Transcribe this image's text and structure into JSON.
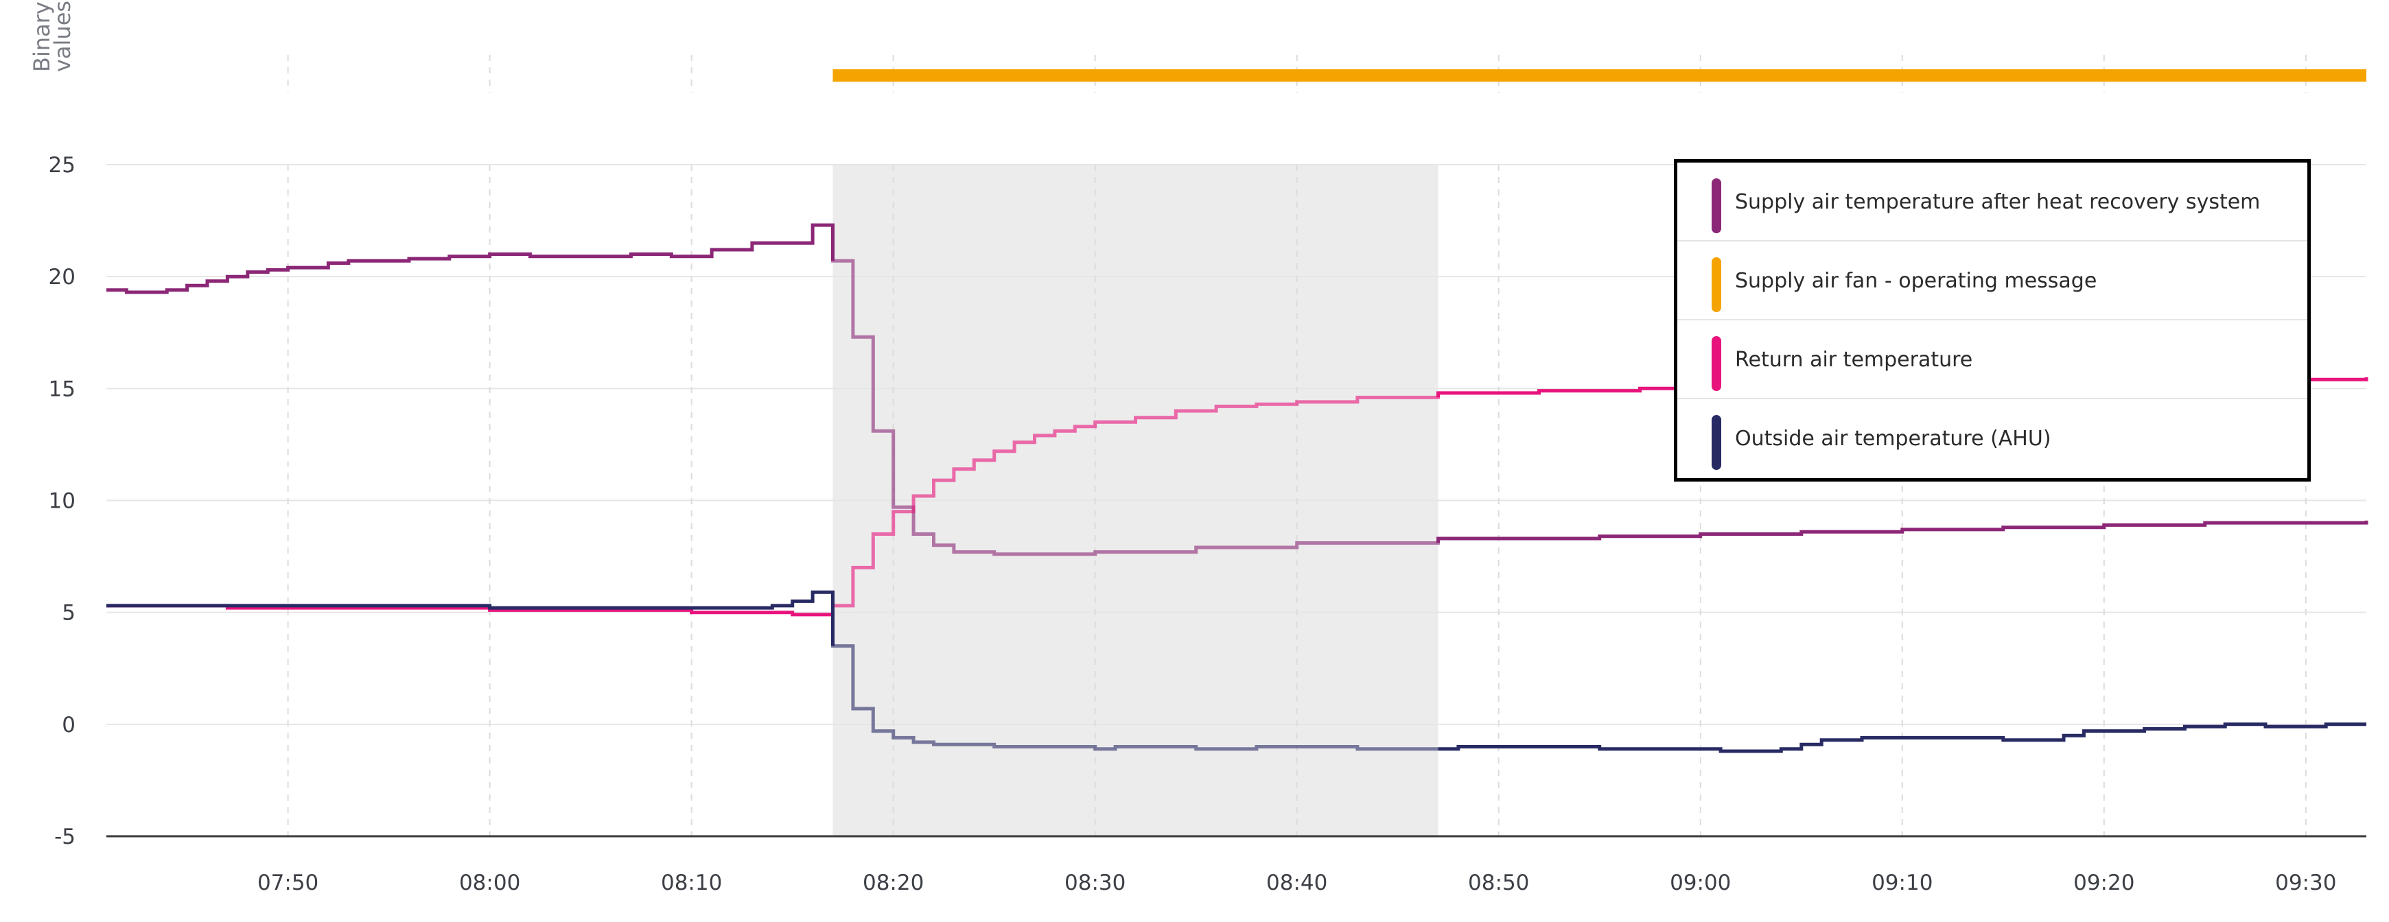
{
  "binary_axis_label": [
    "Binary",
    "values"
  ],
  "chart_data": {
    "type": "line",
    "step": true,
    "x_unit": "time",
    "x_ticks": [
      "07:50",
      "08:00",
      "08:10",
      "08:20",
      "08:30",
      "08:40",
      "08:50",
      "09:00",
      "09:10",
      "09:20",
      "09:30"
    ],
    "y_ticks": [
      25,
      20,
      15,
      10,
      5,
      0,
      -5
    ],
    "ylim": [
      -5,
      25
    ],
    "xlim": [
      "07:41",
      "09:33"
    ],
    "grid": true,
    "highlight_range": [
      "08:17",
      "08:47"
    ],
    "legend_position": "top-right",
    "series": [
      {
        "name": "Supply air temperature after heat recovery system",
        "color": "#8b2776",
        "points": [
          [
            "07:41",
            19.4
          ],
          [
            "07:42",
            19.3
          ],
          [
            "07:44",
            19.4
          ],
          [
            "07:45",
            19.6
          ],
          [
            "07:46",
            19.8
          ],
          [
            "07:47",
            20.0
          ],
          [
            "07:48",
            20.2
          ],
          [
            "07:49",
            20.3
          ],
          [
            "07:50",
            20.4
          ],
          [
            "07:52",
            20.6
          ],
          [
            "07:53",
            20.7
          ],
          [
            "07:56",
            20.8
          ],
          [
            "07:58",
            20.9
          ],
          [
            "08:00",
            21.0
          ],
          [
            "08:02",
            20.9
          ],
          [
            "08:04",
            20.9
          ],
          [
            "08:07",
            21.0
          ],
          [
            "08:09",
            20.9
          ],
          [
            "08:11",
            21.2
          ],
          [
            "08:13",
            21.5
          ],
          [
            "08:16",
            22.3
          ],
          [
            "08:17",
            20.7
          ],
          [
            "08:18",
            17.3
          ],
          [
            "08:19",
            13.1
          ],
          [
            "08:20",
            9.7
          ],
          [
            "08:21",
            8.5
          ],
          [
            "08:22",
            8.0
          ],
          [
            "08:23",
            7.7
          ],
          [
            "08:25",
            7.6
          ],
          [
            "08:30",
            7.7
          ],
          [
            "08:35",
            7.9
          ],
          [
            "08:40",
            8.1
          ],
          [
            "08:47",
            8.3
          ],
          [
            "08:55",
            8.4
          ],
          [
            "09:00",
            8.5
          ],
          [
            "09:05",
            8.6
          ],
          [
            "09:10",
            8.7
          ],
          [
            "09:15",
            8.8
          ],
          [
            "09:20",
            8.9
          ],
          [
            "09:25",
            9.0
          ],
          [
            "09:33",
            9.1
          ]
        ]
      },
      {
        "name": "Supply air fan - operating message",
        "color": "#f5a300",
        "binary": true,
        "on_from": "08:17",
        "on_to": "09:33"
      },
      {
        "name": "Return air temperature",
        "color": "#e8137c",
        "points": [
          [
            "07:41",
            5.3
          ],
          [
            "07:47",
            5.2
          ],
          [
            "08:00",
            5.1
          ],
          [
            "08:10",
            5.0
          ],
          [
            "08:15",
            4.9
          ],
          [
            "08:17",
            5.3
          ],
          [
            "08:18",
            7.0
          ],
          [
            "08:19",
            8.5
          ],
          [
            "08:20",
            9.5
          ],
          [
            "08:21",
            10.2
          ],
          [
            "08:22",
            10.9
          ],
          [
            "08:23",
            11.4
          ],
          [
            "08:24",
            11.8
          ],
          [
            "08:25",
            12.2
          ],
          [
            "08:26",
            12.6
          ],
          [
            "08:27",
            12.9
          ],
          [
            "08:28",
            13.1
          ],
          [
            "08:29",
            13.3
          ],
          [
            "08:30",
            13.5
          ],
          [
            "08:32",
            13.7
          ],
          [
            "08:34",
            14.0
          ],
          [
            "08:36",
            14.2
          ],
          [
            "08:38",
            14.3
          ],
          [
            "08:40",
            14.4
          ],
          [
            "08:43",
            14.6
          ],
          [
            "08:47",
            14.8
          ],
          [
            "08:52",
            14.9
          ],
          [
            "08:57",
            15.0
          ],
          [
            "09:03",
            15.1
          ],
          [
            "09:10",
            15.2
          ],
          [
            "09:18",
            15.3
          ],
          [
            "09:25",
            15.4
          ],
          [
            "09:33",
            15.5
          ]
        ]
      },
      {
        "name": "Outside air temperature (AHU)",
        "color": "#282a64",
        "points": [
          [
            "07:41",
            5.3
          ],
          [
            "08:00",
            5.2
          ],
          [
            "08:12",
            5.2
          ],
          [
            "08:14",
            5.3
          ],
          [
            "08:15",
            5.5
          ],
          [
            "08:16",
            5.9
          ],
          [
            "08:17",
            3.5
          ],
          [
            "08:18",
            0.7
          ],
          [
            "08:19",
            -0.3
          ],
          [
            "08:20",
            -0.6
          ],
          [
            "08:21",
            -0.8
          ],
          [
            "08:22",
            -0.9
          ],
          [
            "08:25",
            -1.0
          ],
          [
            "08:28",
            -1.0
          ],
          [
            "08:30",
            -1.1
          ],
          [
            "08:31",
            -1.0
          ],
          [
            "08:33",
            -1.0
          ],
          [
            "08:35",
            -1.1
          ],
          [
            "08:38",
            -1.0
          ],
          [
            "08:42",
            -1.0
          ],
          [
            "08:43",
            -1.1
          ],
          [
            "08:47",
            -1.1
          ],
          [
            "08:48",
            -1.0
          ],
          [
            "08:52",
            -1.0
          ],
          [
            "08:55",
            -1.1
          ],
          [
            "09:01",
            -1.2
          ],
          [
            "09:04",
            -1.1
          ],
          [
            "09:05",
            -0.9
          ],
          [
            "09:06",
            -0.7
          ],
          [
            "09:08",
            -0.6
          ],
          [
            "09:10",
            -0.6
          ],
          [
            "09:15",
            -0.7
          ],
          [
            "09:18",
            -0.5
          ],
          [
            "09:19",
            -0.3
          ],
          [
            "09:22",
            -0.2
          ],
          [
            "09:24",
            -0.1
          ],
          [
            "09:26",
            0.0
          ],
          [
            "09:28",
            -0.1
          ],
          [
            "09:31",
            0.0
          ],
          [
            "09:33",
            0.0
          ]
        ]
      }
    ]
  }
}
